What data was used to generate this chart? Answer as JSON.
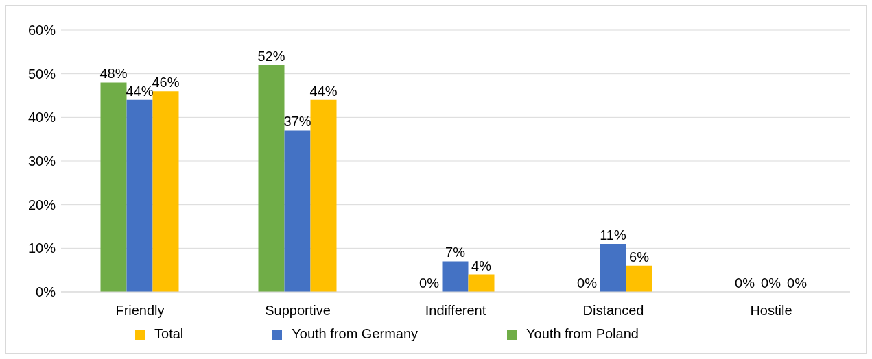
{
  "chart_data": {
    "type": "bar",
    "categories": [
      "Friendly",
      "Supportive",
      "Indifferent",
      "Distanced",
      "Hostile"
    ],
    "series": [
      {
        "name": "Youth from Poland",
        "color": "#70ad47",
        "values": [
          48,
          52,
          0,
          0,
          0
        ],
        "value_labels": [
          "48%",
          "52%",
          "0%",
          "0%",
          "0%"
        ]
      },
      {
        "name": "Youth from Germany",
        "color": "#4472c4",
        "values": [
          44,
          37,
          7,
          11,
          0
        ],
        "value_labels": [
          "44%",
          "37%",
          "7%",
          "11%",
          "0%"
        ]
      },
      {
        "name": "Total",
        "color": "#ffc000",
        "values": [
          46,
          44,
          4,
          6,
          0
        ],
        "value_labels": [
          "46%",
          "44%",
          "4%",
          "6%",
          "0%"
        ]
      }
    ],
    "ylim": [
      0,
      60
    ],
    "yticks": [
      {
        "value": 0,
        "label": "0%"
      },
      {
        "value": 10,
        "label": "10%"
      },
      {
        "value": 20,
        "label": "20%"
      },
      {
        "value": 30,
        "label": "30%"
      },
      {
        "value": 40,
        "label": "40%"
      },
      {
        "value": 50,
        "label": "50%"
      },
      {
        "value": 60,
        "label": "60%"
      }
    ],
    "grid": "y",
    "legend": "bottom"
  }
}
